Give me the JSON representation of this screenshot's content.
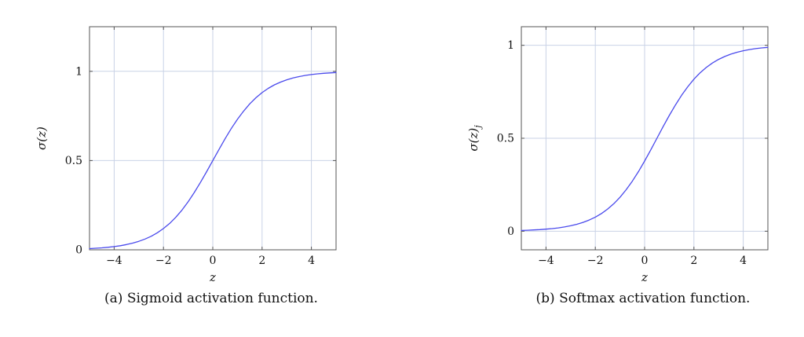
{
  "page": {
    "background": "#ffffff"
  },
  "chart_data": [
    {
      "type": "line",
      "caption": "(a) Sigmoid activation function.",
      "xlabel": "z",
      "ylabel": "σ(z)",
      "ylabel_sub": "",
      "xlim": [
        -5,
        5
      ],
      "ylim": [
        0,
        1.25
      ],
      "x_ticks": [
        -4,
        -2,
        0,
        2,
        4
      ],
      "y_ticks": [
        0,
        0.5,
        1
      ],
      "grid": true,
      "legend": false,
      "line_color": "#4a4aec",
      "grid_color": "#c9d2e6",
      "frame_color": "#555555",
      "x": [
        -5,
        -4.75,
        -4.5,
        -4.25,
        -4,
        -3.75,
        -3.5,
        -3.25,
        -3,
        -2.75,
        -2.5,
        -2.25,
        -2,
        -1.75,
        -1.5,
        -1.25,
        -1,
        -0.75,
        -0.5,
        -0.25,
        0,
        0.25,
        0.5,
        0.75,
        1,
        1.25,
        1.5,
        1.75,
        2,
        2.25,
        2.5,
        2.75,
        3,
        3.25,
        3.5,
        3.75,
        4,
        4.25,
        4.5,
        4.75,
        5
      ],
      "series": [
        {
          "name": "sigmoid",
          "y": [
            0.0067,
            0.0086,
            0.011,
            0.0141,
            0.018,
            0.023,
            0.0293,
            0.0373,
            0.0474,
            0.0601,
            0.0759,
            0.0953,
            0.1192,
            0.148,
            0.1824,
            0.2227,
            0.2689,
            0.3208,
            0.3775,
            0.4378,
            0.5,
            0.5622,
            0.6225,
            0.6792,
            0.7311,
            0.7773,
            0.8176,
            0.8519,
            0.8808,
            0.9047,
            0.9241,
            0.9399,
            0.9526,
            0.9627,
            0.9707,
            0.977,
            0.982,
            0.9859,
            0.989,
            0.9914,
            0.9933
          ]
        }
      ]
    },
    {
      "type": "line",
      "caption": "(b) Softmax activation function.",
      "xlabel": "z",
      "ylabel": "σ(z)",
      "ylabel_sub": "j",
      "xlim": [
        -5,
        5
      ],
      "ylim": [
        -0.1,
        1.1
      ],
      "x_ticks": [
        -4,
        -2,
        0,
        2,
        4
      ],
      "y_ticks": [
        0,
        0.5,
        1
      ],
      "grid": true,
      "legend": false,
      "line_color": "#4a4aec",
      "grid_color": "#c9d2e6",
      "frame_color": "#555555",
      "x": [
        -5,
        -4.75,
        -4.5,
        -4.25,
        -4,
        -3.75,
        -3.5,
        -3.25,
        -3,
        -2.75,
        -2.5,
        -2.25,
        -2,
        -1.75,
        -1.5,
        -1.25,
        -1,
        -0.75,
        -0.5,
        -0.25,
        0,
        0.25,
        0.5,
        0.75,
        1,
        1.25,
        1.5,
        1.75,
        2,
        2.25,
        2.5,
        2.75,
        3,
        3.25,
        3.5,
        3.75,
        4,
        4.25,
        4.5,
        4.75,
        5
      ],
      "series": [
        {
          "name": "softmax",
          "y": [
            0.0041,
            0.0052,
            0.0067,
            0.0086,
            0.011,
            0.0141,
            0.018,
            0.023,
            0.0293,
            0.0373,
            0.0474,
            0.0601,
            0.0759,
            0.0953,
            0.1192,
            0.148,
            0.1824,
            0.2227,
            0.2689,
            0.3208,
            0.3775,
            0.4378,
            0.5,
            0.5622,
            0.6225,
            0.6792,
            0.7311,
            0.7773,
            0.8176,
            0.8519,
            0.8808,
            0.9047,
            0.9241,
            0.9399,
            0.9526,
            0.9627,
            0.9707,
            0.977,
            0.982,
            0.9859,
            0.989
          ]
        }
      ]
    }
  ]
}
